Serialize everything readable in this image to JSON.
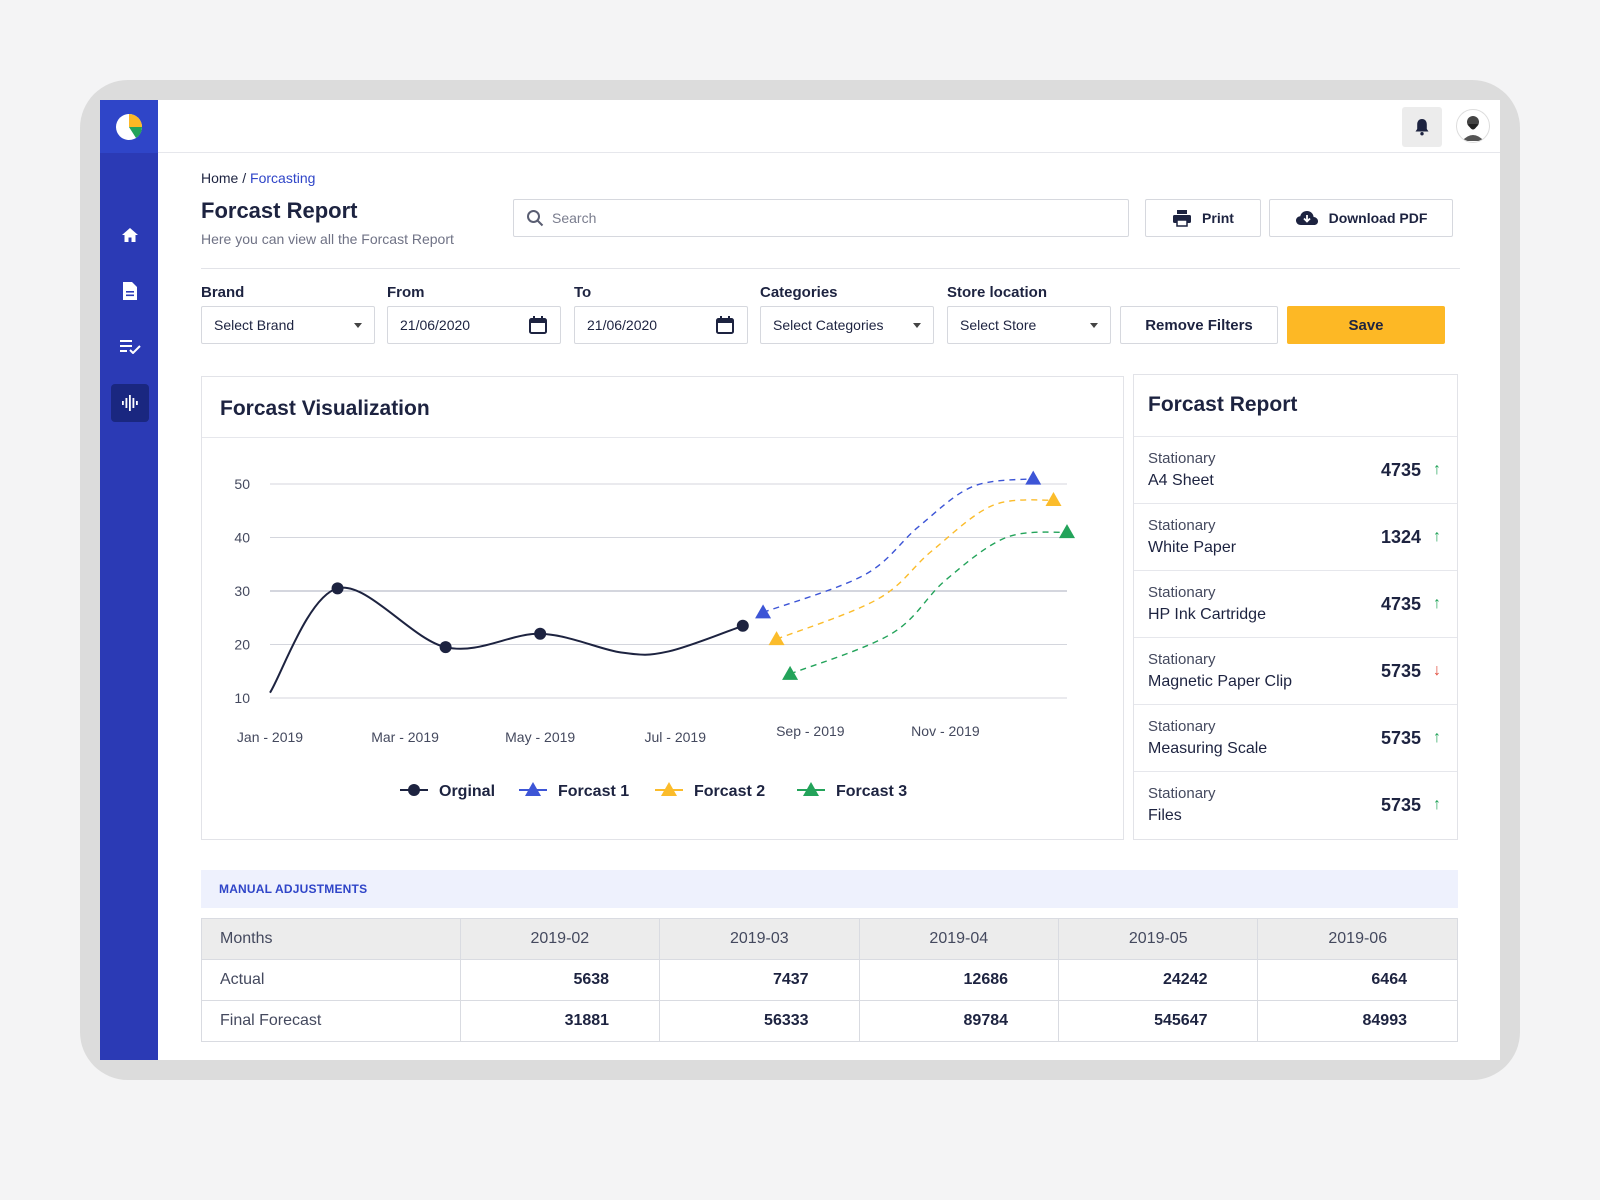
{
  "colors": {
    "sidebar": "#2b3ab5",
    "accent": "#2f45c8",
    "save": "#fdb825",
    "original": "#1d2340",
    "forecast1": "#3d55d6",
    "forecast2": "#fbbc2b",
    "forecast3": "#23a35a",
    "up": "#23a35a",
    "down": "#e04a3a"
  },
  "sidebar": {
    "items": [
      {
        "icon": "home-icon"
      },
      {
        "icon": "document-icon"
      },
      {
        "icon": "checklist-icon"
      },
      {
        "icon": "waveform-icon"
      }
    ]
  },
  "breadcrumb": {
    "home": "Home",
    "separator": "/",
    "current": "Forcasting"
  },
  "page": {
    "title": "Forcast Report",
    "subtitle": "Here you can view all the Forcast Report"
  },
  "search": {
    "placeholder": "Search"
  },
  "toolbar": {
    "print_label": "Print",
    "download_label": "Download PDF"
  },
  "filters": {
    "brand": {
      "label": "Brand",
      "value": "Select Brand"
    },
    "from": {
      "label": "From",
      "value": "21/06/2020"
    },
    "to": {
      "label": "To",
      "value": "21/06/2020"
    },
    "categories": {
      "label": "Categories",
      "value": "Select Categories"
    },
    "store": {
      "label": "Store location",
      "value": "Select Store"
    },
    "remove_label": "Remove Filters",
    "save_label": "Save"
  },
  "visualization": {
    "title": "Forcast Visualization"
  },
  "chart_data": {
    "type": "line",
    "title": "Forcast Visualization",
    "ylim": [
      10,
      50
    ],
    "yticks": [
      50,
      40,
      30,
      20,
      10
    ],
    "x_tick_labels": [
      "Jan - 2019",
      "Mar - 2019",
      "May - 2019",
      "Jul - 2019",
      "Sep - 2019",
      "Nov - 2019"
    ],
    "grid": true,
    "legend_position": "bottom",
    "series": [
      {
        "name": "Orginal",
        "style": "solid",
        "marker": "circle",
        "points": [
          [
            0,
            11
          ],
          [
            1,
            30.5
          ],
          [
            2.6,
            19.5
          ],
          [
            4,
            22
          ],
          [
            5.2,
            18.5
          ],
          [
            5.9,
            18.7
          ],
          [
            7,
            23.5
          ]
        ]
      },
      {
        "name": "Forcast 1",
        "style": "dashed",
        "marker": "triangle",
        "points": [
          [
            7.3,
            26
          ],
          [
            8.8,
            33
          ],
          [
            9.6,
            42
          ],
          [
            10.4,
            49.5
          ],
          [
            11.3,
            51
          ]
        ]
      },
      {
        "name": "Forcast 2",
        "style": "dashed",
        "marker": "triangle",
        "points": [
          [
            7.5,
            21
          ],
          [
            9,
            28.5
          ],
          [
            9.8,
            37.5
          ],
          [
            10.7,
            46
          ],
          [
            11.6,
            47
          ]
        ]
      },
      {
        "name": "Forcast 3",
        "style": "dashed",
        "marker": "triangle",
        "points": [
          [
            7.7,
            14.5
          ],
          [
            9.2,
            22
          ],
          [
            10,
            32
          ],
          [
            10.9,
            40
          ],
          [
            11.8,
            41
          ]
        ]
      }
    ]
  },
  "report": {
    "title": "Forcast Report",
    "items": [
      {
        "category": "Stationary",
        "name": "A4 Sheet",
        "value": "4735",
        "trend": "up",
        "arrow": "↑"
      },
      {
        "category": "Stationary",
        "name": "White Paper",
        "value": "1324",
        "trend": "up",
        "arrow": "↑"
      },
      {
        "category": "Stationary",
        "name": "HP Ink Cartridge",
        "value": "4735",
        "trend": "up",
        "arrow": "↑"
      },
      {
        "category": "Stationary",
        "name": "Magnetic Paper Clip",
        "value": "5735",
        "trend": "down",
        "arrow": "↓"
      },
      {
        "category": "Stationary",
        "name": "Measuring Scale",
        "value": "5735",
        "trend": "up",
        "arrow": "↑"
      },
      {
        "category": "Stationary",
        "name": "Files",
        "value": "5735",
        "trend": "up",
        "arrow": "↑"
      }
    ]
  },
  "manual": {
    "title": "MANUAL ADJUSTMENTS",
    "headers": [
      "Months",
      "2019-02",
      "2019-03",
      "2019-04",
      "2019-05",
      "2019-06"
    ],
    "rows": [
      {
        "label": "Actual",
        "values": [
          "5638",
          "7437",
          "12686",
          "24242",
          "6464"
        ]
      },
      {
        "label": "Final Forecast",
        "values": [
          "31881",
          "56333",
          "89784",
          "545647",
          "84993"
        ]
      }
    ]
  }
}
